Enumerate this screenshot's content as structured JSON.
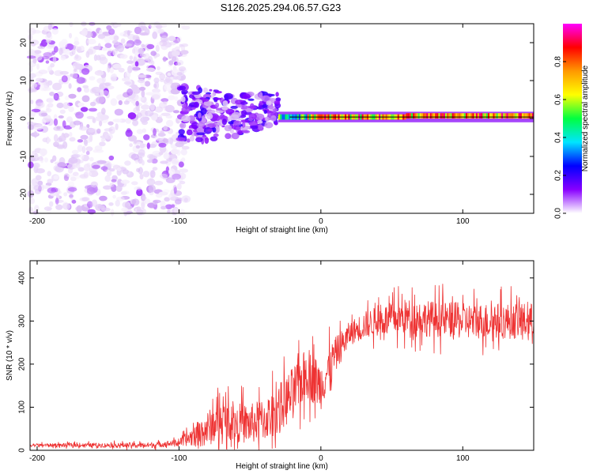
{
  "title": "S126.2025.294.06.57.G23",
  "chart_data": [
    {
      "type": "heatmap",
      "name": "spectrogram",
      "xlabel": "Height of straight line (km)",
      "ylabel": "Frequency (Hz)",
      "xlim": [
        -205,
        150
      ],
      "ylim": [
        -25,
        25
      ],
      "xticks": [
        -200,
        -100,
        0,
        100
      ],
      "yticks": [
        -20,
        -10,
        0,
        10,
        20
      ],
      "colorbar": {
        "label": "Normalized spectral amplitude",
        "range": [
          0,
          1
        ],
        "ticks": [
          "0.0",
          "0.2",
          "0.4",
          "0.6",
          "0.8"
        ],
        "colors": [
          "#ffffff",
          "#d8b8f5",
          "#8800ff",
          "#0000ff",
          "#00e5ff",
          "#00ff40",
          "#ffff00",
          "#ff9900",
          "#ff0000",
          "#ff00ff"
        ]
      },
      "regions": [
        {
          "x": [
            -205,
            -95
          ],
          "freq_center": 0,
          "freq_spread": 25,
          "amplitude": 0.1,
          "description_level": "noise"
        },
        {
          "x": [
            -100,
            -30
          ],
          "freq_center": 1,
          "freq_spread": 8,
          "amplitude": 0.2
        },
        {
          "x": [
            -30,
            150
          ],
          "freq_center": 0.5,
          "freq_spread": 1,
          "amplitude": 0.9
        }
      ]
    },
    {
      "type": "line",
      "name": "snr",
      "xlabel": "Height of straight line (km)",
      "ylabel": "SNR (10 * v/v)",
      "xlim": [
        -205,
        150
      ],
      "ylim": [
        0,
        440
      ],
      "xticks": [
        -200,
        -100,
        0,
        100
      ],
      "yticks": [
        0,
        100,
        200,
        300,
        400
      ],
      "color": "#ee3333",
      "trend": {
        "x": [
          -205,
          -120,
          -100,
          -85,
          -70,
          -50,
          -35,
          -20,
          -10,
          0,
          10,
          20,
          30,
          40,
          60,
          80,
          100,
          120,
          150
        ],
        "y": [
          12,
          12,
          18,
          40,
          70,
          60,
          80,
          130,
          180,
          150,
          220,
          270,
          290,
          300,
          310,
          305,
          300,
          300,
          300
        ]
      },
      "noise_amplitude": {
        "x": [
          -205,
          -100,
          -80,
          -40,
          -20,
          0,
          20,
          60,
          150
        ],
        "y": [
          5,
          10,
          60,
          70,
          90,
          80,
          40,
          60,
          60
        ]
      }
    }
  ]
}
